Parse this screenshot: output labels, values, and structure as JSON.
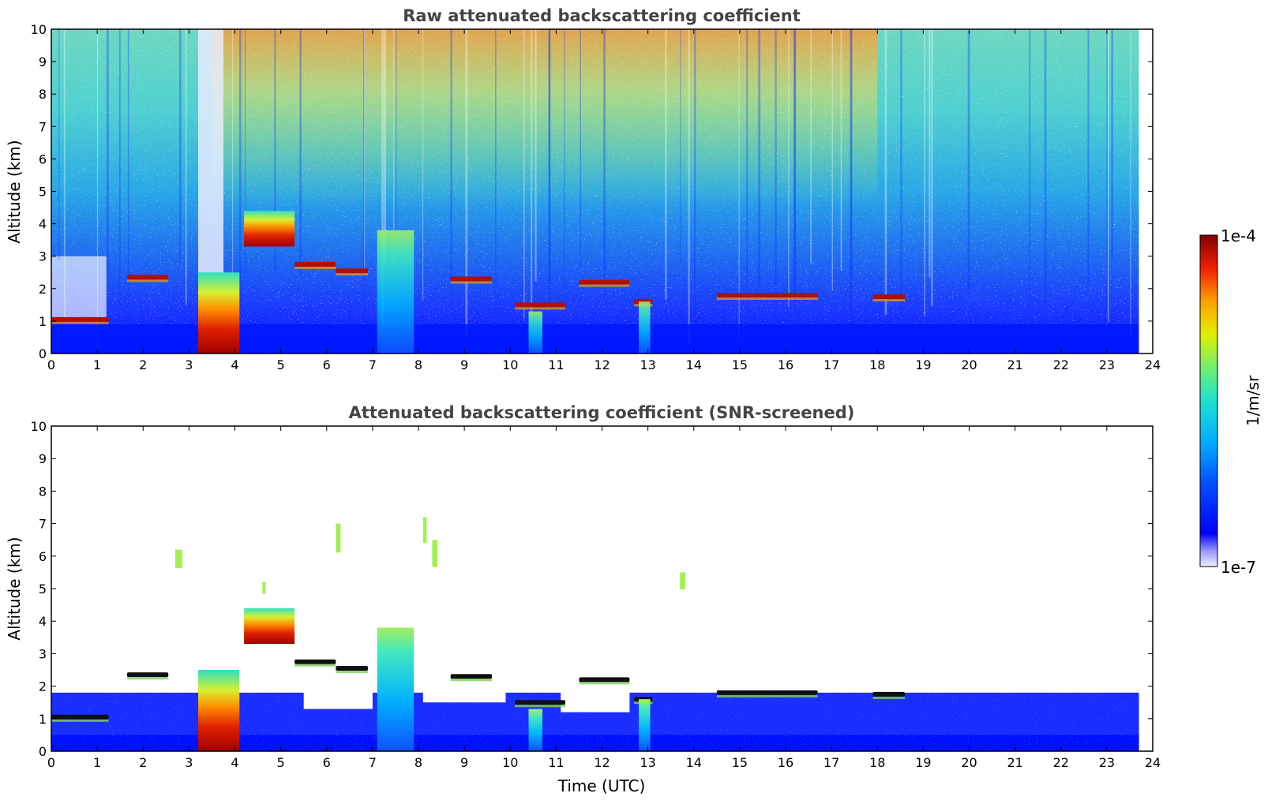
{
  "chart_data": [
    {
      "type": "heatmap",
      "title": "Raw attenuated backscattering coefficient",
      "xlabel": "",
      "ylabel": "Altitude (km)",
      "xlim": [
        0,
        24
      ],
      "ylim": [
        0,
        10
      ],
      "x_ticks": [
        "0",
        "1",
        "2",
        "3",
        "4",
        "5",
        "6",
        "7",
        "8",
        "9",
        "10",
        "11",
        "12",
        "13",
        "14",
        "15",
        "16",
        "17",
        "18",
        "19",
        "20",
        "21",
        "22",
        "23",
        "24"
      ],
      "y_ticks": [
        "0",
        "1",
        "2",
        "3",
        "4",
        "5",
        "6",
        "7",
        "8",
        "9",
        "10"
      ],
      "data_end_time": 23.7,
      "features": [
        {
          "kind": "cloud_layer",
          "t_start": 0.0,
          "t_end": 1.25,
          "altitude": 1.05,
          "level": "high"
        },
        {
          "kind": "cloud_layer",
          "t_start": 1.65,
          "t_end": 2.55,
          "altitude": 2.35,
          "level": "high"
        },
        {
          "kind": "cloud_layer",
          "t_start": 5.3,
          "t_end": 6.2,
          "altitude": 2.75,
          "level": "high"
        },
        {
          "kind": "cloud_layer",
          "t_start": 6.2,
          "t_end": 6.9,
          "altitude": 2.55,
          "level": "high"
        },
        {
          "kind": "cloud_layer",
          "t_start": 8.7,
          "t_end": 9.6,
          "altitude": 2.3,
          "level": "high"
        },
        {
          "kind": "cloud_layer",
          "t_start": 10.1,
          "t_end": 11.2,
          "altitude": 1.5,
          "level": "high"
        },
        {
          "kind": "cloud_layer",
          "t_start": 11.5,
          "t_end": 12.6,
          "altitude": 2.2,
          "level": "high"
        },
        {
          "kind": "cloud_layer",
          "t_start": 12.7,
          "t_end": 13.1,
          "altitude": 1.6,
          "level": "high"
        },
        {
          "kind": "cloud_layer",
          "t_start": 14.5,
          "t_end": 16.7,
          "altitude": 1.8,
          "level": "high"
        },
        {
          "kind": "cloud_layer",
          "t_start": 17.9,
          "t_end": 18.6,
          "altitude": 1.75,
          "level": "high"
        },
        {
          "kind": "aerosol_plume",
          "t_start": 3.2,
          "t_end": 4.1,
          "altitude_base": 0.0,
          "altitude_top": 2.5,
          "level": "very_high"
        },
        {
          "kind": "aerosol_plume",
          "t_start": 4.2,
          "t_end": 5.3,
          "altitude_base": 3.3,
          "altitude_top": 4.4,
          "level": "high"
        },
        {
          "kind": "precipitation",
          "t_start": 7.1,
          "t_end": 7.9,
          "altitude_base": 0.0,
          "altitude_top": 3.8,
          "level": "medium"
        },
        {
          "kind": "precipitation",
          "t_start": 10.4,
          "t_end": 10.7,
          "altitude_base": 0.0,
          "altitude_top": 1.3,
          "level": "medium"
        },
        {
          "kind": "precipitation",
          "t_start": 12.8,
          "t_end": 13.05,
          "altitude_base": 0.0,
          "altitude_top": 1.6,
          "level": "medium"
        }
      ]
    },
    {
      "type": "heatmap",
      "title": "Attenuated backscattering coefficient (SNR-screened)",
      "xlabel": "Time (UTC)",
      "ylabel": "Altitude (km)",
      "xlim": [
        0,
        24
      ],
      "ylim": [
        0,
        10
      ],
      "x_ticks": [
        "0",
        "1",
        "2",
        "3",
        "4",
        "5",
        "6",
        "7",
        "8",
        "9",
        "10",
        "11",
        "12",
        "13",
        "14",
        "15",
        "16",
        "17",
        "18",
        "19",
        "20",
        "21",
        "22",
        "23",
        "24"
      ],
      "y_ticks": [
        "0",
        "1",
        "2",
        "3",
        "4",
        "5",
        "6",
        "7",
        "8",
        "9",
        "10"
      ],
      "data_end_time": 23.7,
      "boundary_layer_top_km": 1.8
    }
  ],
  "colorbar": {
    "label": "1/m/sr",
    "max_label": "1e-4",
    "min_label": "1e-7",
    "colors": [
      "#ffffff",
      "#0000ff",
      "#0066ff",
      "#00ccff",
      "#33ff99",
      "#ccff33",
      "#ffcc00",
      "#ff6600",
      "#cc0000",
      "#800000"
    ]
  }
}
